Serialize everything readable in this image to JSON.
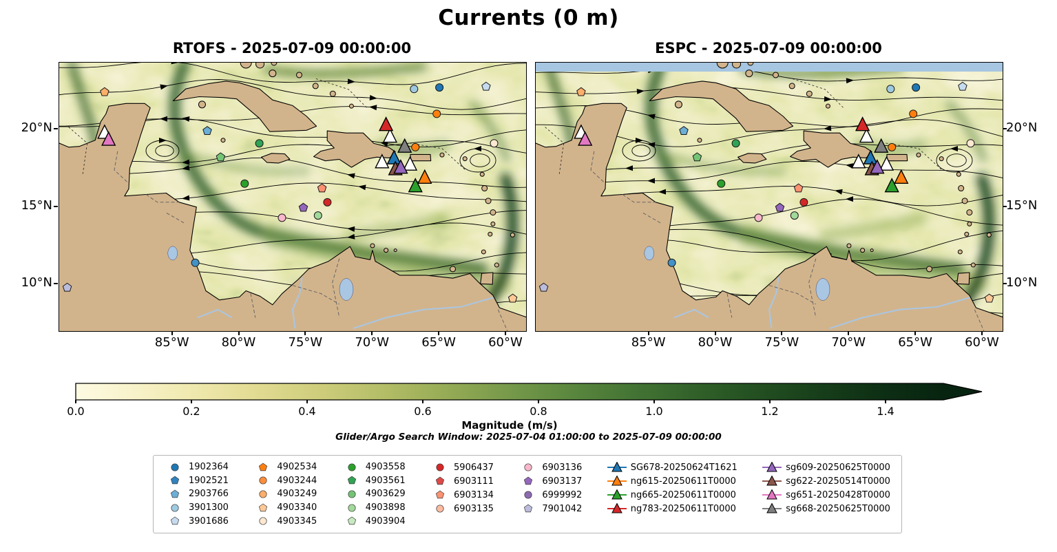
{
  "figure": {
    "title": "Currents (0 m)",
    "note": "Glider/Argo Search Window: 2025-07-04 01:00:00 to 2025-07-09 00:00:00"
  },
  "chart_data": {
    "type": "map",
    "subtype": "ocean-current-streamline-comparison",
    "panels": [
      {
        "model": "RTOFS",
        "title": "RTOFS - 2025-07-09 00:00:00"
      },
      {
        "model": "ESPC",
        "title": "ESPC - 2025-07-09 00:00:00"
      }
    ],
    "extent": {
      "lon_min": -93.5,
      "lon_max": -58.5,
      "lat_min": 7.0,
      "lat_max": 24.3
    },
    "x_ticks": [
      {
        "label": "85°W",
        "lon": -85
      },
      {
        "label": "80°W",
        "lon": -80
      },
      {
        "label": "75°W",
        "lon": -75
      },
      {
        "label": "70°W",
        "lon": -70
      },
      {
        "label": "65°W",
        "lon": -65
      },
      {
        "label": "60°W",
        "lon": -60
      }
    ],
    "y_ticks": [
      {
        "label": "20°N",
        "lat": 20
      },
      {
        "label": "15°N",
        "lat": 15
      },
      {
        "label": "10°N",
        "lat": 10
      }
    ],
    "colorbar": {
      "label": "Magnitude (m/s)",
      "ticks": [
        0.0,
        0.2,
        0.4,
        0.6,
        0.8,
        1.0,
        1.2,
        1.4
      ],
      "vmin": 0.0,
      "vmax": 1.5,
      "extend": "max",
      "palette": [
        "#fdfae3",
        "#f7f2c8",
        "#eee7ab",
        "#e0da90",
        "#cccc7a",
        "#b3bd66",
        "#95ab55",
        "#76994a",
        "#5a873e",
        "#447434",
        "#316129",
        "#234f21",
        "#173e1a",
        "#0d2f14",
        "#072410"
      ]
    },
    "style": {
      "land": "#d2b48c",
      "lake": "#a9c6e3",
      "espc_strip": "#a6c6e1",
      "coastline": "#000000"
    },
    "legend": {
      "columns": [
        [
          {
            "label": "1902364",
            "shape": "circle",
            "color": "#1f77b4"
          },
          {
            "label": "1902521",
            "shape": "pentagon",
            "color": "#3182bd"
          },
          {
            "label": "2903766",
            "shape": "pentagon",
            "color": "#6baed6"
          },
          {
            "label": "3901300",
            "shape": "circle",
            "color": "#9ecae1"
          },
          {
            "label": "3901686",
            "shape": "pentagon",
            "color": "#c6dbef"
          }
        ],
        [
          {
            "label": "4902534",
            "shape": "pentagon",
            "color": "#ff7f0e"
          },
          {
            "label": "4903244",
            "shape": "circle",
            "color": "#fd8d3c"
          },
          {
            "label": "4903249",
            "shape": "circle",
            "color": "#fdae6b"
          },
          {
            "label": "4903340",
            "shape": "pentagon",
            "color": "#fdc997"
          },
          {
            "label": "4903345",
            "shape": "circle",
            "color": "#fee8d1"
          }
        ],
        [
          {
            "label": "4903558",
            "shape": "circle",
            "color": "#2ca02c"
          },
          {
            "label": "4903561",
            "shape": "pentagon",
            "color": "#31a354"
          },
          {
            "label": "4903629",
            "shape": "circle",
            "color": "#74c476"
          },
          {
            "label": "4903898",
            "shape": "circle",
            "color": "#a1d99b"
          },
          {
            "label": "4903904",
            "shape": "pentagon",
            "color": "#c7e9c0"
          }
        ],
        [
          {
            "label": "5906437",
            "shape": "circle",
            "color": "#d62728"
          },
          {
            "label": "6903111",
            "shape": "pentagon",
            "color": "#de4a48"
          },
          {
            "label": "6903134",
            "shape": "pentagon",
            "color": "#fc9272"
          },
          {
            "label": "6903135",
            "shape": "circle",
            "color": "#fcbba1"
          }
        ],
        [
          {
            "label": "6903136",
            "shape": "circle",
            "color": "#f8b7cb"
          },
          {
            "label": "6903137",
            "shape": "pentagon",
            "color": "#9467bd"
          },
          {
            "label": "6999992",
            "shape": "circle",
            "color": "#8c6bb1"
          },
          {
            "label": "7901042",
            "shape": "pentagon",
            "color": "#bcbddc"
          }
        ],
        [
          {
            "label": "SG678-20250624T1621",
            "shape": "glider",
            "color": "#1f77b4"
          },
          {
            "label": "ng615-20250611T0000",
            "shape": "glider",
            "color": "#ff7f0e"
          },
          {
            "label": "ng665-20250611T0000",
            "shape": "glider",
            "color": "#2ca02c"
          },
          {
            "label": "ng783-20250611T0000",
            "shape": "glider",
            "color": "#d62728"
          }
        ],
        [
          {
            "label": "sg609-20250625T0000",
            "shape": "glider",
            "color": "#9467bd"
          },
          {
            "label": "sg622-20250514T0000",
            "shape": "glider",
            "color": "#8c564b"
          },
          {
            "label": "sg651-20250428T0000",
            "shape": "glider",
            "color": "#e377c2"
          },
          {
            "label": "sg668-20250625T0000",
            "shape": "glider",
            "color": "#7f7f7f"
          }
        ]
      ]
    },
    "markers": [
      {
        "shape": "pentagon",
        "color": "#fdae6b",
        "lon": -90.1,
        "lat": 22.4
      },
      {
        "shape": "pentagon",
        "color": "#6baed6",
        "lon": -82.4,
        "lat": 19.9
      },
      {
        "shape": "circle",
        "color": "#9ecae1",
        "lon": -66.9,
        "lat": 22.6
      },
      {
        "shape": "circle",
        "color": "#1f77b4",
        "lon": -65.0,
        "lat": 22.7
      },
      {
        "shape": "pentagon",
        "color": "#c6dbef",
        "lon": -61.5,
        "lat": 22.75
      },
      {
        "shape": "circle",
        "color": "#ff7f0e",
        "lon": -65.2,
        "lat": 21.0
      },
      {
        "shape": "circle",
        "color": "#fee8d1",
        "lon": -60.9,
        "lat": 19.1
      },
      {
        "shape": "circle",
        "color": "#ff7f0e",
        "lon": -66.8,
        "lat": 18.85
      },
      {
        "shape": "circle",
        "color": "#31a354",
        "lon": -78.5,
        "lat": 19.1
      },
      {
        "shape": "pentagon",
        "color": "#74c476",
        "lon": -81.4,
        "lat": 18.2
      },
      {
        "shape": "circle",
        "color": "#2ca02c",
        "lon": -79.6,
        "lat": 16.5
      },
      {
        "shape": "pentagon",
        "color": "#fc9272",
        "lon": -73.8,
        "lat": 16.2
      },
      {
        "shape": "circle",
        "color": "#d62728",
        "lon": -73.4,
        "lat": 15.3
      },
      {
        "shape": "pentagon",
        "color": "#9467bd",
        "lon": -75.2,
        "lat": 14.95
      },
      {
        "shape": "circle",
        "color": "#a1d99b",
        "lon": -74.1,
        "lat": 14.45
      },
      {
        "shape": "circle",
        "color": "#f8b7cb",
        "lon": -76.8,
        "lat": 14.3
      },
      {
        "shape": "circle",
        "color": "#4292c6",
        "lon": -83.3,
        "lat": 11.4
      },
      {
        "shape": "pentagon",
        "color": "#bcbddc",
        "lon": -92.9,
        "lat": 9.8
      },
      {
        "shape": "pentagon",
        "color": "#fdc997",
        "lon": -59.5,
        "lat": 9.1
      },
      {
        "shape": "triangle",
        "color": "#ffffff",
        "lon": -90.1,
        "lat": 19.8
      },
      {
        "shape": "triangle",
        "color": "#e377c2",
        "lon": -89.8,
        "lat": 19.35,
        "id": "sg651"
      },
      {
        "shape": "triangle",
        "color": "#ffffff",
        "lon": -68.7,
        "lat": 19.55
      },
      {
        "shape": "triangle",
        "color": "#d62728",
        "lon": -69.0,
        "lat": 20.3,
        "id": "ng783"
      },
      {
        "shape": "triangle",
        "color": "#7f7f7f",
        "lon": -67.6,
        "lat": 18.9,
        "id": "sg668"
      },
      {
        "shape": "triangle",
        "color": "#ffffff",
        "lon": -69.3,
        "lat": 17.9
      },
      {
        "shape": "triangle",
        "color": "#ffffff",
        "lon": -67.2,
        "lat": 17.75
      },
      {
        "shape": "triangle",
        "color": "#1f77b4",
        "lon": -68.4,
        "lat": 18.15,
        "id": "SG678"
      },
      {
        "shape": "triangle",
        "color": "#8c564b",
        "lon": -68.3,
        "lat": 17.45,
        "id": "sg622"
      },
      {
        "shape": "triangle",
        "color": "#9467bd",
        "lon": -67.9,
        "lat": 17.55,
        "id": "sg609"
      },
      {
        "shape": "triangle",
        "color": "#2ca02c",
        "lon": -66.8,
        "lat": 16.35,
        "id": "ng665"
      },
      {
        "shape": "triangle",
        "color": "#ff7f0e",
        "lon": -66.1,
        "lat": 16.9,
        "id": "ng615"
      }
    ]
  }
}
